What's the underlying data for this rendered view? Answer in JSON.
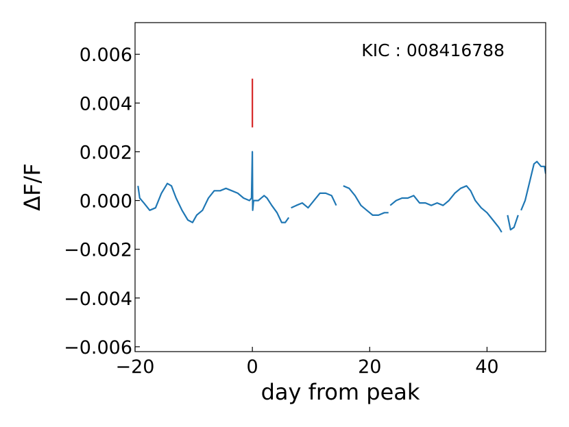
{
  "chart_data": {
    "type": "line",
    "title": "",
    "xlabel": "day from peak",
    "ylabel": "ΔF/F",
    "xlim": [
      -20,
      50
    ],
    "ylim": [
      -0.0062,
      0.0073
    ],
    "xticks": [
      -20,
      0,
      20,
      40
    ],
    "xtick_labels": [
      "−20",
      "0",
      "20",
      "40"
    ],
    "yticks": [
      -0.006,
      -0.004,
      -0.002,
      0.0,
      0.002,
      0.004,
      0.006
    ],
    "ytick_labels": [
      "−0.006",
      "−0.004",
      "−0.002",
      "0.000",
      "0.002",
      "0.004",
      "0.006"
    ],
    "grid": false,
    "annotation": "KIC : 008416788",
    "peak_marker": {
      "x": 0,
      "y_from": 0.003,
      "y_to": 0.005,
      "color": "#d62728"
    },
    "series": [
      {
        "color": "#1f77b4",
        "segments": [
          [
            [
              -19.5,
              0.0006
            ],
            [
              -19.2,
              0.0001
            ],
            [
              -18.5,
              -0.0001
            ],
            [
              -17.5,
              -0.0004
            ],
            [
              -16.5,
              -0.0003
            ],
            [
              -15.5,
              0.0003
            ],
            [
              -14.5,
              0.0007
            ],
            [
              -13.8,
              0.0006
            ],
            [
              -13,
              0.0001
            ],
            [
              -12,
              -0.0004
            ],
            [
              -11,
              -0.0008
            ],
            [
              -10.2,
              -0.0009
            ],
            [
              -9.5,
              -0.0006
            ],
            [
              -8.5,
              -0.0004
            ],
            [
              -7.5,
              0.0001
            ],
            [
              -6.5,
              0.0004
            ],
            [
              -5.5,
              0.0004
            ],
            [
              -4.5,
              0.0005
            ],
            [
              -3.5,
              0.0004
            ],
            [
              -2.5,
              0.0003
            ],
            [
              -1.5,
              0.0001
            ],
            [
              -0.5,
              0.0
            ],
            [
              -0.15,
              0.0001
            ],
            [
              0,
              0.002
            ],
            [
              0.05,
              -0.0004
            ],
            [
              0.2,
              0.0
            ],
            [
              1,
              0.0
            ],
            [
              2,
              0.0002
            ],
            [
              2.5,
              0.0001
            ],
            [
              3.3,
              -0.0002
            ],
            [
              4.2,
              -0.0005
            ],
            [
              5,
              -0.0009
            ],
            [
              5.6,
              -0.0009
            ],
            [
              6.2,
              -0.0007
            ]
          ],
          [
            [
              6.6,
              -0.0003
            ],
            [
              7.5,
              -0.0002
            ],
            [
              8.5,
              -0.0001
            ],
            [
              9.5,
              -0.0003
            ],
            [
              10.5,
              0.0
            ],
            [
              11.5,
              0.0003
            ],
            [
              12.5,
              0.0003
            ],
            [
              13.5,
              0.0002
            ],
            [
              14.3,
              -0.0002
            ]
          ],
          [
            [
              15.5,
              0.0006
            ],
            [
              16.5,
              0.0005
            ],
            [
              17.5,
              0.0002
            ],
            [
              18.5,
              -0.0002
            ],
            [
              19.5,
              -0.0004
            ],
            [
              20.5,
              -0.0006
            ],
            [
              21.5,
              -0.0006
            ],
            [
              22.5,
              -0.0005
            ],
            [
              23.2,
              -0.0005
            ]
          ],
          [
            [
              23.5,
              -0.0002
            ],
            [
              24.5,
              0.0
            ],
            [
              25.5,
              0.0001
            ],
            [
              26.5,
              0.0001
            ],
            [
              27.5,
              0.0002
            ],
            [
              28.5,
              -0.0001
            ],
            [
              29.5,
              -0.0001
            ],
            [
              30.5,
              -0.0002
            ],
            [
              31.5,
              -0.0001
            ],
            [
              32.5,
              -0.0002
            ],
            [
              33.5,
              0.0
            ],
            [
              34.5,
              0.0003
            ],
            [
              35.5,
              0.0005
            ],
            [
              36.5,
              0.0006
            ],
            [
              37.2,
              0.0004
            ],
            [
              38,
              0.0
            ],
            [
              39,
              -0.0003
            ],
            [
              40,
              -0.0005
            ],
            [
              41,
              -0.0008
            ],
            [
              42,
              -0.0011
            ],
            [
              42.5,
              -0.0013
            ]
          ],
          [
            [
              43.5,
              -0.0006
            ],
            [
              44,
              -0.0012
            ],
            [
              44.6,
              -0.0011
            ],
            [
              45.3,
              -0.0006
            ]
          ],
          [
            [
              45.8,
              -0.0004
            ],
            [
              46.5,
              0.0
            ],
            [
              47.3,
              0.0008
            ],
            [
              48,
              0.0015
            ],
            [
              48.5,
              0.0016
            ],
            [
              49.2,
              0.0014
            ],
            [
              49.8,
              0.0014
            ],
            [
              50,
              0.0011
            ]
          ]
        ]
      }
    ]
  }
}
